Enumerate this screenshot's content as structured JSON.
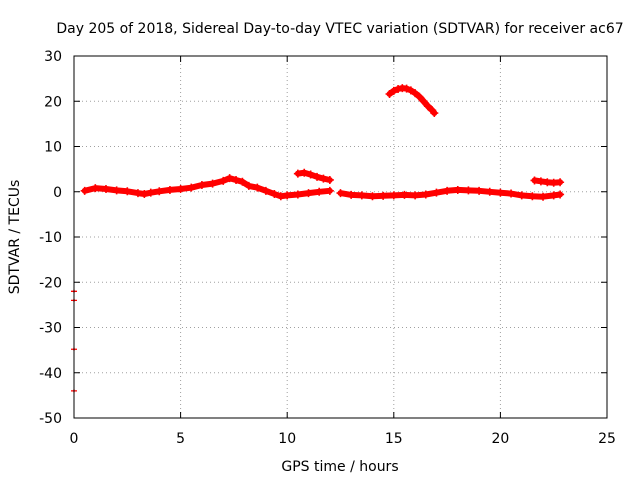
{
  "chart_data": {
    "type": "scatter",
    "title": "Day 205 of 2018, Sidereal Day-to-day VTEC variation (SDTVAR) for receiver ac67",
    "xlabel": "GPS time / hours",
    "ylabel": "SDTVAR / TECUs",
    "xlim": [
      0,
      25
    ],
    "ylim": [
      -50,
      30
    ],
    "xticks": [
      0,
      5,
      10,
      15,
      20,
      25
    ],
    "yticks": [
      -50,
      -40,
      -30,
      -20,
      -10,
      0,
      10,
      20,
      30
    ],
    "x_tick_labels": [
      "0",
      "5",
      "10",
      "15",
      "20",
      "25"
    ],
    "y_tick_labels": [
      "-50",
      "-40",
      "-30",
      "-20",
      "-10",
      "0",
      "10",
      "20",
      "30"
    ],
    "grid": true,
    "marker_color": "#ff0000",
    "series": [
      {
        "name": "main-trace-1",
        "x": [
          0.5,
          1.0,
          1.5,
          2.0,
          2.5,
          3.0,
          3.3,
          3.6,
          4.0,
          4.5,
          5.0,
          5.5,
          6.0,
          6.5,
          7.0,
          7.3,
          7.6,
          7.9,
          8.2,
          8.6,
          9.0,
          9.4,
          9.7,
          10.0,
          10.5,
          11.0,
          11.5,
          12.0
        ],
        "y": [
          0.2,
          0.8,
          0.6,
          0.3,
          0.1,
          -0.3,
          -0.5,
          -0.2,
          0.1,
          0.4,
          0.6,
          0.9,
          1.5,
          1.8,
          2.4,
          3.0,
          2.6,
          2.2,
          1.3,
          0.9,
          0.2,
          -0.5,
          -1.0,
          -0.8,
          -0.6,
          -0.3,
          0.0,
          0.2
        ]
      },
      {
        "name": "main-trace-2",
        "x": [
          12.5,
          13.0,
          13.5,
          14.0,
          14.5,
          15.0,
          15.5,
          16.0,
          16.5,
          17.0,
          17.5,
          18.0,
          18.5,
          19.0,
          19.5,
          20.0,
          20.5,
          21.0,
          21.5,
          22.0,
          22.5,
          22.8
        ],
        "y": [
          -0.3,
          -0.7,
          -0.8,
          -1.0,
          -0.9,
          -0.8,
          -0.7,
          -0.8,
          -0.6,
          -0.2,
          0.2,
          0.4,
          0.3,
          0.2,
          0.0,
          -0.2,
          -0.4,
          -0.8,
          -1.0,
          -1.1,
          -0.8,
          -0.6
        ]
      },
      {
        "name": "segment-11h",
        "x": [
          10.5,
          10.8,
          11.1,
          11.4,
          11.7,
          12.0
        ],
        "y": [
          4.0,
          4.2,
          3.8,
          3.3,
          2.9,
          2.6
        ]
      },
      {
        "name": "arc-15h",
        "x": [
          14.8,
          15.0,
          15.2,
          15.4,
          15.6,
          15.8,
          16.0,
          16.2,
          16.4,
          16.6,
          16.8,
          16.9
        ],
        "y": [
          21.6,
          22.3,
          22.7,
          22.9,
          22.8,
          22.4,
          21.8,
          21.0,
          20.0,
          18.9,
          18.0,
          17.4
        ]
      },
      {
        "name": "segment-22h",
        "x": [
          21.6,
          21.9,
          22.2,
          22.5,
          22.8
        ],
        "y": [
          2.5,
          2.3,
          2.1,
          2.0,
          2.1
        ]
      },
      {
        "name": "outliers-0h",
        "x": [
          0,
          0,
          0,
          0
        ],
        "y": [
          -22.0,
          -24.0,
          -34.8,
          -44.0
        ]
      }
    ]
  }
}
